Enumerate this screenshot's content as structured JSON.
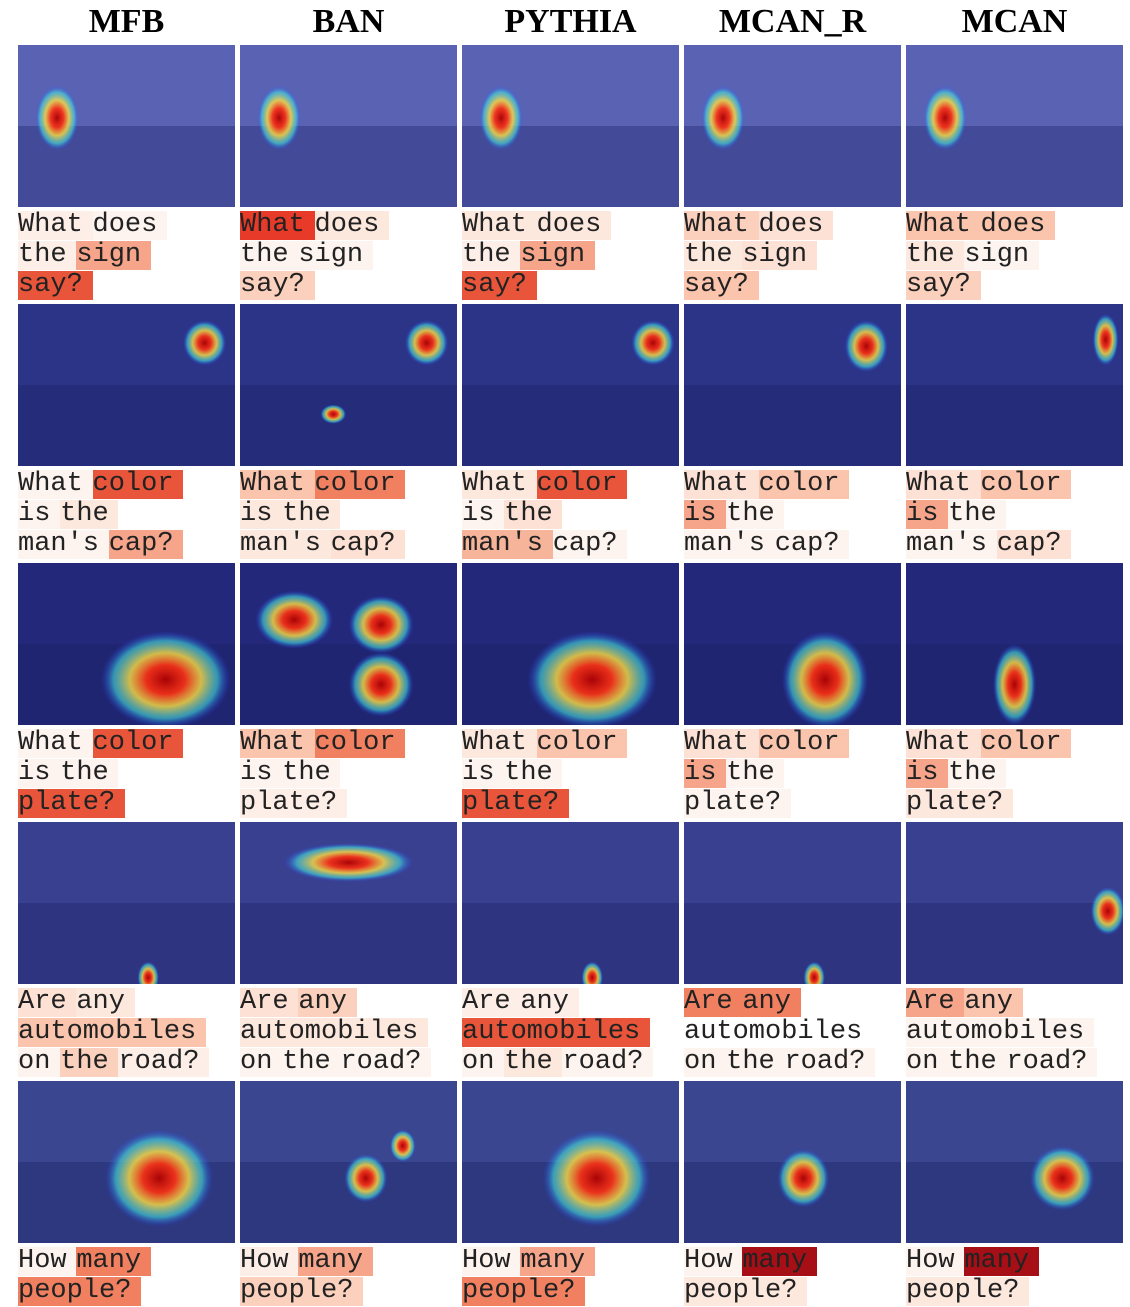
{
  "columns": [
    "MFB",
    "BAN",
    "PYTHIA",
    "MCAN_R",
    "MCAN"
  ],
  "rows": [
    {
      "cells": [
        [
          [
            {
              "text": "What",
              "color": "#fdeee8"
            },
            {
              "text": "does",
              "color": "#fdf3ef"
            }
          ],
          [
            {
              "text": "the",
              "color": "#fdeee8"
            },
            {
              "text": "sign",
              "color": "#f6a58a"
            }
          ],
          [
            {
              "text": "say?",
              "color": "#e8553a"
            }
          ]
        ],
        [
          [
            {
              "text": "What",
              "color": "#e83a28"
            },
            {
              "text": "does",
              "color": "#fde8de"
            }
          ],
          [
            {
              "text": "the",
              "color": "#fdf3ef"
            },
            {
              "text": "sign",
              "color": "#fdf3ef"
            }
          ],
          [
            {
              "text": "say?",
              "color": "#fbd0bd"
            }
          ]
        ],
        [
          [
            {
              "text": "What",
              "color": "#fde8de"
            },
            {
              "text": "does",
              "color": "#fde8de"
            }
          ],
          [
            {
              "text": "the",
              "color": "#fdeee8"
            },
            {
              "text": "sign",
              "color": "#f6a58a"
            }
          ],
          [
            {
              "text": "say?",
              "color": "#e8553a"
            }
          ]
        ],
        [
          [
            {
              "text": "What",
              "color": "#fbd0bd"
            },
            {
              "text": "does",
              "color": "#fde1d4"
            }
          ],
          [
            {
              "text": "the",
              "color": "#fde8de"
            },
            {
              "text": "sign",
              "color": "#fde1d4"
            }
          ],
          [
            {
              "text": "say?",
              "color": "#fbc4ad"
            }
          ]
        ],
        [
          [
            {
              "text": "What",
              "color": "#fbc4ad"
            },
            {
              "text": "does",
              "color": "#fbc4ad"
            }
          ],
          [
            {
              "text": "the",
              "color": "#fde8de"
            },
            {
              "text": "sign",
              "color": "#fdf3ef"
            }
          ],
          [
            {
              "text": "say?",
              "color": "#fbd0bd"
            }
          ]
        ]
      ]
    },
    {
      "cells": [
        [
          [
            {
              "text": "What",
              "color": "#fdf3ef"
            },
            {
              "text": "color",
              "color": "#e8553a"
            }
          ],
          [
            {
              "text": "is",
              "color": "#fdf3ef"
            },
            {
              "text": "the",
              "color": "#fde8de"
            }
          ],
          [
            {
              "text": "man's",
              "color": "#fdf3ef"
            },
            {
              "text": "cap?",
              "color": "#f6a58a"
            }
          ]
        ],
        [
          [
            {
              "text": "What",
              "color": "#fbc4ad"
            },
            {
              "text": "color",
              "color": "#f08060"
            }
          ],
          [
            {
              "text": "is",
              "color": "#fde8de"
            },
            {
              "text": "the",
              "color": "#fde8de"
            }
          ],
          [
            {
              "text": "man's",
              "color": "#fde8de"
            },
            {
              "text": "cap?",
              "color": "#fde1d4"
            }
          ]
        ],
        [
          [
            {
              "text": "What",
              "color": "#fde8de"
            },
            {
              "text": "color",
              "color": "#e8553a"
            }
          ],
          [
            {
              "text": "is",
              "color": "#fdf3ef"
            },
            {
              "text": "the",
              "color": "#fde1d4"
            }
          ],
          [
            {
              "text": "man's",
              "color": "#f6b49a"
            },
            {
              "text": "cap?",
              "color": "#fdf3ef"
            }
          ]
        ],
        [
          [
            {
              "text": "What",
              "color": "#fde1d4"
            },
            {
              "text": "color",
              "color": "#fbc4ad"
            }
          ],
          [
            {
              "text": "is",
              "color": "#f6a58a"
            },
            {
              "text": "the",
              "color": "#fdf3ef"
            }
          ],
          [
            {
              "text": "man's",
              "color": "#fdf3ef"
            },
            {
              "text": "cap?",
              "color": "#fdf3ef"
            }
          ]
        ],
        [
          [
            {
              "text": "What",
              "color": "#fde1d4"
            },
            {
              "text": "color",
              "color": "#fbc4ad"
            }
          ],
          [
            {
              "text": "is",
              "color": "#f6a58a"
            },
            {
              "text": "the",
              "color": "#fdf3ef"
            }
          ],
          [
            {
              "text": "man's",
              "color": "#fdf3ef"
            },
            {
              "text": "cap?",
              "color": "#fde1d4"
            }
          ]
        ]
      ]
    },
    {
      "cells": [
        [
          [
            {
              "text": "What",
              "color": "#fdf3ef"
            },
            {
              "text": "color",
              "color": "#e8553a"
            }
          ],
          [
            {
              "text": "is",
              "color": "#fdf3ef"
            },
            {
              "text": "the",
              "color": "#fdf3ef"
            }
          ],
          [
            {
              "text": "plate?",
              "color": "#e8553a"
            }
          ]
        ],
        [
          [
            {
              "text": "What",
              "color": "#fbc4ad"
            },
            {
              "text": "color",
              "color": "#f08060"
            }
          ],
          [
            {
              "text": "is",
              "color": "#fdf3ef"
            },
            {
              "text": "the",
              "color": "#fdf3ef"
            }
          ],
          [
            {
              "text": "plate?",
              "color": "#fdeee8"
            }
          ]
        ],
        [
          [
            {
              "text": "What",
              "color": "#fde8de"
            },
            {
              "text": "color",
              "color": "#fbc4ad"
            }
          ],
          [
            {
              "text": "is",
              "color": "#fdf3ef"
            },
            {
              "text": "the",
              "color": "#fdf3ef"
            }
          ],
          [
            {
              "text": "plate?",
              "color": "#e8553a"
            }
          ]
        ],
        [
          [
            {
              "text": "What",
              "color": "#fde1d4"
            },
            {
              "text": "color",
              "color": "#fbc4ad"
            }
          ],
          [
            {
              "text": "is",
              "color": "#f6a58a"
            },
            {
              "text": "the",
              "color": "#fdf3ef"
            }
          ],
          [
            {
              "text": "plate?",
              "color": "#fdf3ef"
            }
          ]
        ],
        [
          [
            {
              "text": "What",
              "color": "#fde1d4"
            },
            {
              "text": "color",
              "color": "#fbc4ad"
            }
          ],
          [
            {
              "text": "is",
              "color": "#f6a58a"
            },
            {
              "text": "the",
              "color": "#fdf3ef"
            }
          ],
          [
            {
              "text": "plate?",
              "color": "#fde8de"
            }
          ]
        ]
      ]
    },
    {
      "cells": [
        [
          [
            {
              "text": "Are",
              "color": "#fde1d4"
            },
            {
              "text": "any",
              "color": "#fde8de"
            }
          ],
          [
            {
              "text": "automobiles",
              "color": "#fbc4ad"
            }
          ],
          [
            {
              "text": "on",
              "color": "#fdf3ef"
            },
            {
              "text": "the",
              "color": "#fbd0bd"
            },
            {
              "text": "road?",
              "color": "#fdeee8"
            }
          ]
        ],
        [
          [
            {
              "text": "Are",
              "color": "#fde1d4"
            },
            {
              "text": "any",
              "color": "#fbd0bd"
            }
          ],
          [
            {
              "text": "automobiles",
              "color": "#fde8de"
            }
          ],
          [
            {
              "text": "on",
              "color": "#fdf3ef"
            },
            {
              "text": "the",
              "color": "#fdf3ef"
            },
            {
              "text": "road?",
              "color": "#fdf3ef"
            }
          ]
        ],
        [
          [
            {
              "text": "Are",
              "color": "#fdeee8"
            },
            {
              "text": "any",
              "color": "#fdeee8"
            }
          ],
          [
            {
              "text": "automobiles",
              "color": "#e8553a"
            }
          ],
          [
            {
              "text": "on",
              "color": "#fdf3ef"
            },
            {
              "text": "the",
              "color": "#fde8de"
            },
            {
              "text": "road?",
              "color": "#fdf3ef"
            }
          ]
        ],
        [
          [
            {
              "text": "Are",
              "color": "#f08060"
            },
            {
              "text": "any",
              "color": "#f08060"
            }
          ],
          [
            {
              "text": "automobiles",
              "color": "#ffffff"
            }
          ],
          [
            {
              "text": "on",
              "color": "#fdf3ef"
            },
            {
              "text": "the",
              "color": "#fdf3ef"
            },
            {
              "text": "road?",
              "color": "#fdf3ef"
            }
          ]
        ],
        [
          [
            {
              "text": "Are",
              "color": "#f6a58a"
            },
            {
              "text": "any",
              "color": "#fbc4ad"
            }
          ],
          [
            {
              "text": "automobiles",
              "color": "#fdf3ef"
            }
          ],
          [
            {
              "text": "on",
              "color": "#fdf3ef"
            },
            {
              "text": "the",
              "color": "#fdf3ef"
            },
            {
              "text": "road?",
              "color": "#fdf3ef"
            }
          ]
        ]
      ]
    },
    {
      "cells": [
        [
          [
            {
              "text": "How",
              "color": "#fdf3ef"
            },
            {
              "text": "many",
              "color": "#f08060"
            }
          ],
          [
            {
              "text": "people?",
              "color": "#f08060"
            }
          ]
        ],
        [
          [
            {
              "text": "How",
              "color": "#fdeee8"
            },
            {
              "text": "many",
              "color": "#f6a58a"
            }
          ],
          [
            {
              "text": "people?",
              "color": "#fbd0bd"
            }
          ]
        ],
        [
          [
            {
              "text": "How",
              "color": "#fdf3ef"
            },
            {
              "text": "many",
              "color": "#f6a58a"
            }
          ],
          [
            {
              "text": "people?",
              "color": "#f08060"
            }
          ]
        ],
        [
          [
            {
              "text": "How",
              "color": "#fdf3ef"
            },
            {
              "text": "many",
              "color": "#a50f15"
            }
          ],
          [
            {
              "text": "people?",
              "color": "#fde8de"
            }
          ]
        ],
        [
          [
            {
              "text": "How",
              "color": "#fdf3ef"
            },
            {
              "text": "many",
              "color": "#a50f15"
            }
          ],
          [
            {
              "text": "people?",
              "color": "#fde8de"
            }
          ]
        ]
      ]
    }
  ]
}
